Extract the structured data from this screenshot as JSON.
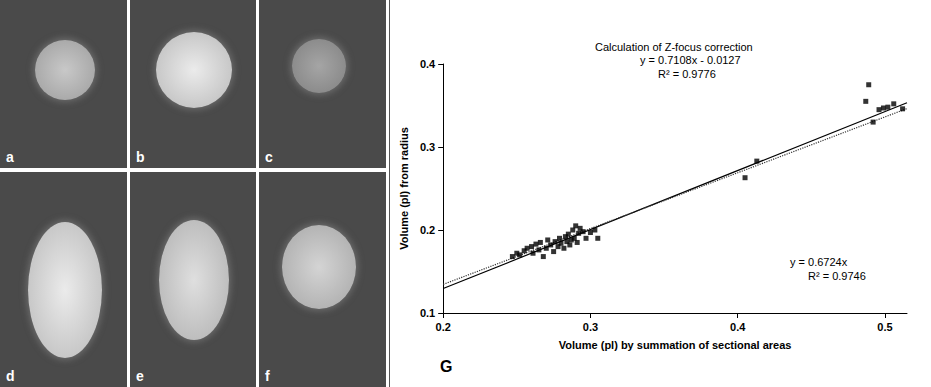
{
  "image_panels": {
    "labels": [
      "a",
      "b",
      "c",
      "d",
      "e",
      "f"
    ]
  },
  "chart_data": {
    "type": "scatter",
    "title": "Calculation of Z-focus correction",
    "panel_label": "G",
    "x_label": "Volume (pl) by summation of sectional areas",
    "y_label": "Volume (pl) from radius",
    "color": "#000000",
    "marker": "square",
    "grid": false,
    "xlim": [
      0.2,
      0.515
    ],
    "ylim": [
      0.1,
      0.4
    ],
    "xticks": [
      0.2,
      0.3,
      0.4,
      0.5
    ],
    "yticks": [
      0.1,
      0.2,
      0.3,
      0.4
    ],
    "x": [
      0.247,
      0.25,
      0.252,
      0.255,
      0.257,
      0.26,
      0.261,
      0.263,
      0.265,
      0.266,
      0.268,
      0.27,
      0.271,
      0.273,
      0.275,
      0.276,
      0.278,
      0.279,
      0.28,
      0.282,
      0.283,
      0.284,
      0.285,
      0.286,
      0.287,
      0.288,
      0.289,
      0.29,
      0.291,
      0.292,
      0.293,
      0.295,
      0.297,
      0.3,
      0.303,
      0.305,
      0.405,
      0.413,
      0.487,
      0.489,
      0.492,
      0.496,
      0.499,
      0.502,
      0.506,
      0.512
    ],
    "values": [
      0.168,
      0.172,
      0.17,
      0.175,
      0.178,
      0.18,
      0.172,
      0.183,
      0.176,
      0.185,
      0.168,
      0.178,
      0.188,
      0.182,
      0.174,
      0.186,
      0.18,
      0.19,
      0.184,
      0.178,
      0.192,
      0.186,
      0.195,
      0.182,
      0.188,
      0.2,
      0.19,
      0.205,
      0.185,
      0.196,
      0.202,
      0.198,
      0.19,
      0.197,
      0.2,
      0.19,
      0.263,
      0.283,
      0.355,
      0.375,
      0.33,
      0.345,
      0.347,
      0.348,
      0.352,
      0.346
    ],
    "trendlines": [
      {
        "slope": 0.7108,
        "intercept": -0.0127,
        "line_style": "solid",
        "color": "#000000",
        "equation": "y = 0.7108x - 0.0127",
        "r2": "R² = 0.9776"
      },
      {
        "slope": 0.6724,
        "intercept": 0,
        "line_style": "dotted",
        "color": "#333333",
        "equation": "y = 0.6724x",
        "r2": "R² = 0.9746"
      }
    ]
  }
}
